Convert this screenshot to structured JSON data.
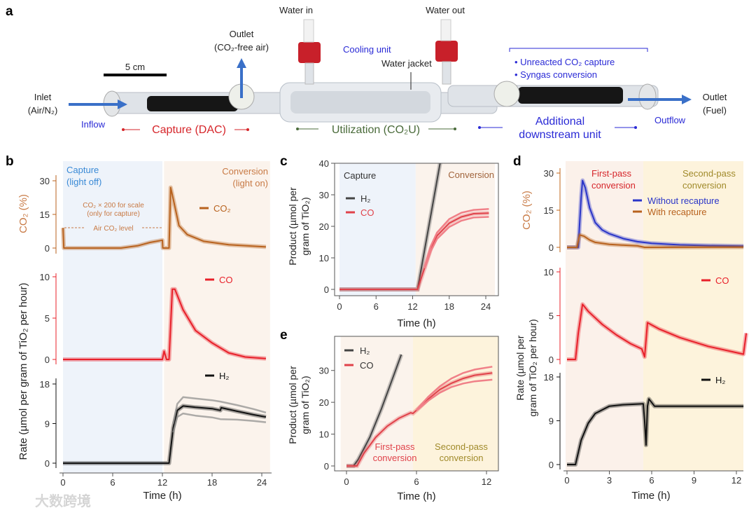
{
  "panel_a": {
    "letter": "a",
    "scale_bar": "5 cm",
    "water_in": "Water in",
    "water_out": "Water out",
    "outlet_top_1": "Outlet",
    "outlet_top_2": "(CO₂-free air)",
    "cooling_unit": "Cooling unit",
    "water_jacket": "Water jacket",
    "bullet_1": "• Unreacted CO₂ capture",
    "bullet_2": "• Syngas conversion",
    "inlet_1": "Inlet",
    "inlet_2": "(Air/N₂)",
    "inflow": "Inflow",
    "capture": "Capture (DAC)",
    "utilization": "Utilization (CO₂U)",
    "additional_1": "Additional",
    "additional_2": "downstream unit",
    "outflow": "Outflow",
    "outlet_fuel_1": "Outlet",
    "outlet_fuel_2": "(Fuel)",
    "colors": {
      "capture": "#d6262b",
      "utilization": "#4a6b3a",
      "downstream": "#2a2ad6",
      "arrow": "#3a70c8"
    }
  },
  "watermark": "大数跨境",
  "chart_data": [
    {
      "id": "b",
      "type": "line",
      "letter": "b",
      "xlabel": "Time (h)",
      "xlim": [
        0,
        24.5
      ],
      "xticks": [
        0,
        6,
        12,
        18,
        24
      ],
      "regions": [
        {
          "label_1": "Capture",
          "label_2": "(light off)",
          "from": 0,
          "to": 12,
          "color": "#eef3fa"
        },
        {
          "label_1": "Conversion",
          "label_2": "(light on)",
          "from": 12.2,
          "to": 25,
          "color": "#fbf3ec"
        }
      ],
      "ylabel_top": "CO₂ (%)",
      "ylabel_rate": "Rate (µmol per gram of TiO₂ per hour)",
      "annotation_1": "CO₂ × 200 for scale",
      "annotation_2": "(only for capture)",
      "annotation_3": "Air CO₂ level",
      "subplots": [
        {
          "name": "CO₂",
          "ylim": [
            0,
            30
          ],
          "yticks": [
            0,
            15,
            30
          ],
          "color": "#b8621e",
          "series": [
            {
              "name": "CO₂",
              "x": [
                0,
                0.1,
                7,
                9,
                10.5,
                12,
                12.05,
                12.8,
                13,
                13.3,
                14,
                15,
                17,
                20,
                24.5
              ],
              "y": [
                9,
                0,
                0,
                1,
                2.5,
                3.5,
                0,
                0,
                27,
                22,
                10,
                6,
                3,
                1.5,
                0.5
              ]
            }
          ]
        },
        {
          "name": "CO",
          "ylim": [
            0,
            10
          ],
          "yticks": [
            0,
            5,
            10
          ],
          "color": "#e8202a",
          "series": [
            {
              "name": "CO",
              "x": [
                0,
                12,
                12.2,
                12.5,
                12.8,
                13.2,
                13.5,
                14.5,
                16,
                18,
                20,
                22,
                24.5
              ],
              "y": [
                0,
                0,
                1,
                0,
                0,
                8.5,
                8.5,
                6,
                3.5,
                2,
                0.8,
                0.3,
                0.1
              ]
            }
          ]
        },
        {
          "name": "H₂",
          "ylim": [
            0,
            18
          ],
          "yticks": [
            0,
            9,
            18
          ],
          "color": "#111111",
          "series": [
            {
              "name": "H₂",
              "x": [
                0,
                12.8,
                13.3,
                13.8,
                14.5,
                16,
                18,
                19,
                19.1,
                21,
                23,
                24.5
              ],
              "y": [
                0,
                0,
                8,
                12,
                13,
                12.7,
                12.4,
                12,
                12.6,
                11.8,
                11,
                10.5
              ]
            },
            {
              "name": "H₂ upper",
              "x": [
                13.3,
                13.8,
                14.5,
                16,
                18,
                19,
                21,
                23,
                24.5
              ],
              "y": [
                9,
                13.5,
                15,
                14.7,
                14.3,
                14,
                13.2,
                12.3,
                11.5
              ]
            },
            {
              "name": "H₂ lower",
              "x": [
                13.3,
                13.8,
                14.5,
                16,
                18,
                19,
                21,
                23,
                24.5
              ],
              "y": [
                7,
                10.5,
                11.3,
                10.8,
                10.4,
                10,
                9.9,
                9.6,
                9.3
              ]
            }
          ]
        }
      ]
    },
    {
      "id": "c",
      "type": "line",
      "letter": "c",
      "xlabel": "Time (h)",
      "ylabel_1": "Product (µmol per",
      "ylabel_2": "gram of TiO₂)",
      "xlim": [
        0,
        24.5
      ],
      "ylim": [
        0,
        40
      ],
      "xticks": [
        0,
        6,
        12,
        18,
        24
      ],
      "yticks": [
        0,
        10,
        20,
        30,
        40
      ],
      "regions": [
        {
          "label_1": "Capture",
          "from": 0,
          "to": 12.5,
          "color": "#eef3fa"
        },
        {
          "label_1": "Conversion",
          "from": 12.5,
          "to": 25.5,
          "color": "#fbf3ec"
        }
      ],
      "legend": [
        "H₂",
        "CO"
      ],
      "series": [
        {
          "name": "H₂",
          "color": "#444444",
          "x": [
            0,
            12.8,
            16.5
          ],
          "y": [
            0,
            0,
            40
          ]
        },
        {
          "name": "CO",
          "color": "#e0424a",
          "x": [
            0,
            12.8,
            14,
            15,
            16,
            18,
            20,
            22,
            24.5
          ],
          "y": [
            0,
            0,
            7,
            13,
            17,
            21,
            23,
            24,
            24.2
          ]
        },
        {
          "name": "CO upper",
          "color": "#f08088",
          "x": [
            14,
            15,
            16,
            18,
            20,
            22,
            24.5
          ],
          "y": [
            7.3,
            13.8,
            18,
            22.3,
            24.3,
            25.2,
            25.5
          ]
        },
        {
          "name": "CO lower",
          "color": "#f08088",
          "x": [
            14,
            15,
            16,
            18,
            20,
            22,
            24.5
          ],
          "y": [
            6.7,
            12.2,
            16,
            19.8,
            21.8,
            22.8,
            23
          ]
        }
      ]
    },
    {
      "id": "e",
      "type": "line",
      "letter": "e",
      "xlabel": "Time (h)",
      "ylabel_1": "Product (µmol per",
      "ylabel_2": "gram of TiO₂)",
      "xlim": [
        0,
        12.5
      ],
      "ylim": [
        0,
        35
      ],
      "xticks": [
        0,
        6,
        12
      ],
      "yticks": [
        0,
        10,
        20,
        30
      ],
      "regions": [
        {
          "label_1": "First-pass",
          "label_2": "conversion",
          "from": -0.5,
          "to": 5.7,
          "color": "#fbf3ec"
        },
        {
          "label_1": "Second-pass",
          "label_2": "conversion",
          "from": 5.7,
          "to": 13,
          "color": "#fdf3dc"
        }
      ],
      "legend": [
        "H₂",
        "CO"
      ],
      "series": [
        {
          "name": "H₂",
          "color": "#444444",
          "x": [
            0,
            0.6,
            1,
            2,
            3,
            4,
            4.7
          ],
          "y": [
            0,
            0,
            2,
            9,
            18,
            28,
            35
          ]
        },
        {
          "name": "CO",
          "color": "#e0424a",
          "x": [
            0,
            0.9,
            1.5,
            2.5,
            3.5,
            4.5,
            5.5,
            5.7,
            6,
            7,
            8,
            9,
            10,
            11,
            12.5
          ],
          "y": [
            0,
            0,
            4,
            9,
            12.5,
            15,
            16.7,
            16.5,
            17.5,
            21,
            24,
            26,
            27.5,
            28.5,
            29.2
          ]
        },
        {
          "name": "CO upper",
          "color": "#f08088",
          "x": [
            6,
            7,
            8,
            9,
            10,
            11,
            12.5
          ],
          "y": [
            17.6,
            21.7,
            25,
            27.5,
            29.2,
            30.3,
            31.2
          ]
        },
        {
          "name": "CO lower",
          "color": "#f08088",
          "x": [
            6,
            7,
            8,
            9,
            10,
            11,
            12.5
          ],
          "y": [
            17.4,
            20.5,
            23,
            24.8,
            25.9,
            26.6,
            27.1
          ]
        }
      ]
    },
    {
      "id": "d",
      "type": "line",
      "letter": "d",
      "xlabel": "Time (h)",
      "xlim": [
        0,
        12.7
      ],
      "xticks": [
        0,
        3,
        6,
        9,
        12
      ],
      "ylabel_top": "CO₂ (%)",
      "ylabel_rate_1": "Rate (µmol per",
      "ylabel_rate_2": "gram of TiO₂ per hour)",
      "regions": [
        {
          "label_1": "First-pass",
          "label_2": "conversion",
          "from": -0.1,
          "to": 5.4,
          "color": "#fbf1ea"
        },
        {
          "label_1": "Second-pass",
          "label_2": "conversion",
          "from": 5.4,
          "to": 12.8,
          "color": "#fdf3dc"
        }
      ],
      "subplots": [
        {
          "name": "CO₂",
          "ylim": [
            0,
            30
          ],
          "yticks": [
            0,
            15,
            30
          ],
          "color": "#c0651a",
          "legend": [
            "Without recapture",
            "With recapture"
          ],
          "series": [
            {
              "name": "Without recapture",
              "color": "#2a35c8",
              "x": [
                0,
                0.8,
                1,
                1.1,
                1.3,
                1.6,
                2,
                2.5,
                3,
                4,
                5,
                6,
                8,
                10,
                12.5
              ],
              "y": [
                0,
                0,
                20,
                27,
                24,
                16,
                10,
                7,
                5.5,
                3.5,
                2.3,
                1.6,
                1,
                0.7,
                0.5
              ]
            },
            {
              "name": "With recapture",
              "color": "#b8621e",
              "x": [
                0,
                0.7,
                0.9,
                1.2,
                1.6,
                2,
                3,
                5,
                5.5,
                12.5
              ],
              "y": [
                0,
                0,
                5,
                4.5,
                3,
                2,
                1.2,
                0.6,
                0,
                0.1
              ]
            }
          ]
        },
        {
          "name": "CO",
          "ylim": [
            0,
            10
          ],
          "yticks": [
            0,
            5,
            10
          ],
          "color": "#e8202a",
          "series": [
            {
              "name": "CO",
              "color": "#e8202a",
              "x": [
                0,
                0.6,
                0.8,
                1.1,
                1.5,
                2.5,
                3.5,
                4.5,
                5.3,
                5.5,
                5.7,
                6.5,
                8,
                10,
                12.5,
                12.7
              ],
              "y": [
                0,
                0,
                3,
                6.3,
                5.5,
                4,
                2.8,
                1.8,
                1.2,
                0.3,
                4.2,
                3.5,
                2.5,
                1.5,
                0.6,
                3
              ]
            }
          ]
        },
        {
          "name": "H₂",
          "ylim": [
            0,
            18
          ],
          "yticks": [
            0,
            9,
            18
          ],
          "color": "#111111",
          "series": [
            {
              "name": "H₂",
              "color": "#111111",
              "x": [
                0,
                0.6,
                1,
                1.5,
                2,
                3,
                4,
                5.4,
                5.5,
                5.6,
                5.7,
                5.8,
                6.2,
                8,
                12.5
              ],
              "y": [
                0,
                0,
                5,
                8.5,
                10.5,
                12,
                12.3,
                12.5,
                9,
                4,
                12,
                13.5,
                12,
                12,
                12
              ]
            }
          ]
        }
      ]
    }
  ]
}
